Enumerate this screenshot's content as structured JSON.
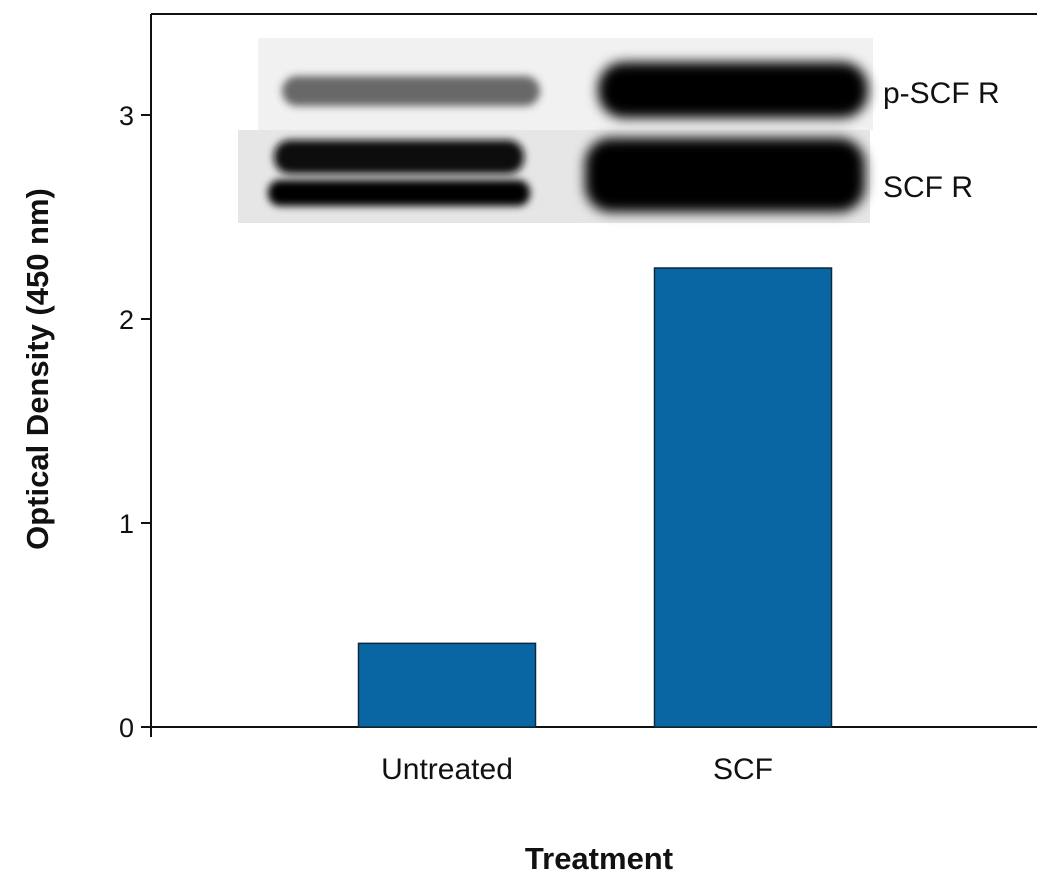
{
  "chart_data": {
    "type": "bar",
    "categories": [
      "Untreated",
      "SCF"
    ],
    "values": [
      0.41,
      2.25
    ],
    "title": "",
    "xlabel": "Treatment",
    "ylabel": "Optical Density (450 nm)",
    "ylim": [
      0,
      3.5
    ],
    "yticks": [
      "0",
      "1",
      "2",
      "3"
    ],
    "grid": false,
    "bar_color": "#0a66a3"
  },
  "inset_blot": {
    "lanes": [
      "Untreated",
      "SCF"
    ],
    "rows": [
      {
        "label": "p-SCF R",
        "intensity": [
          0.55,
          1.0
        ]
      },
      {
        "label": "SCF R",
        "intensity": [
          0.9,
          1.0
        ]
      }
    ]
  }
}
